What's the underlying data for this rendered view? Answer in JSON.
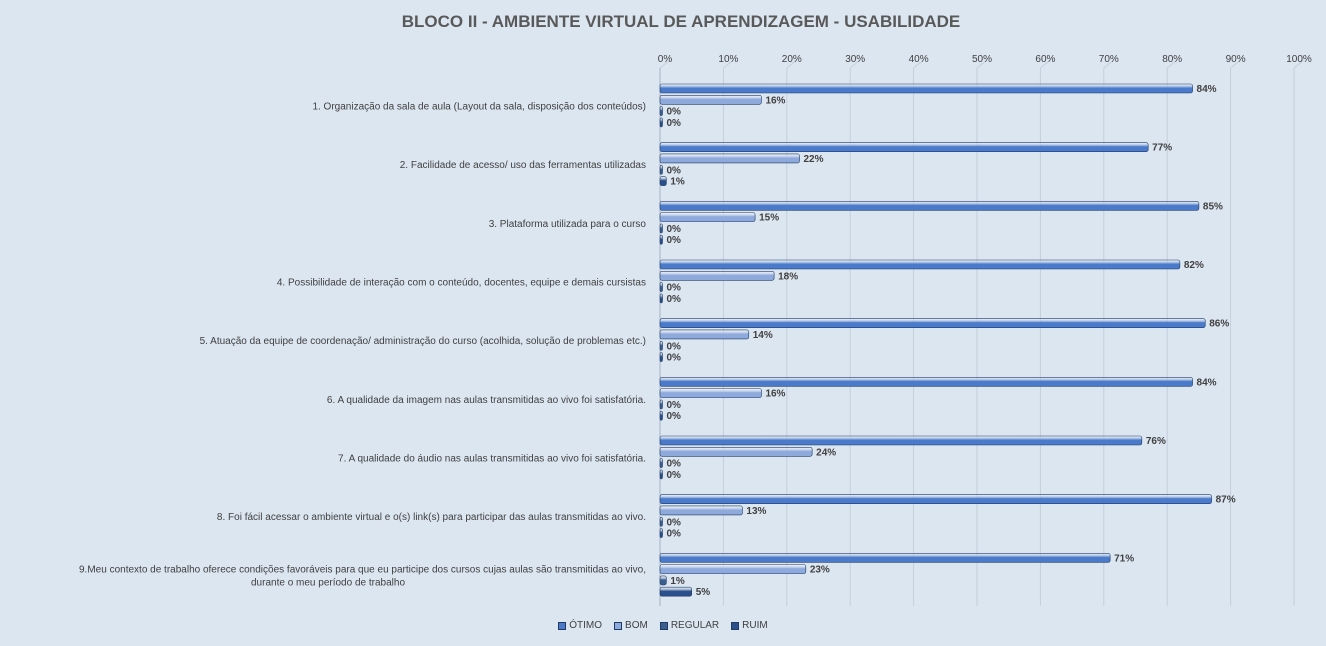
{
  "chart_data": {
    "type": "bar",
    "orientation": "horizontal",
    "title": "BLOCO II - AMBIENTE VIRTUAL DE APRENDIZAGEM - USABILIDADE",
    "xlim": [
      0,
      100
    ],
    "x_ticks": [
      "0%",
      "10%",
      "20%",
      "30%",
      "40%",
      "50%",
      "60%",
      "70%",
      "80%",
      "90%",
      "100%"
    ],
    "x_axis_position": "top",
    "grid": true,
    "legend_position": "bottom",
    "value_suffix": "%",
    "categories": [
      [
        "1. Organização da sala de aula (Layout da sala, disposição dos conteúdos)"
      ],
      [
        "2. Facilidade de acesso/ uso das ferramentas utilizadas"
      ],
      [
        "3. Plataforma utilizada para o curso"
      ],
      [
        "4. Possibilidade de interação com o conteúdo, docentes, equipe e demais cursistas"
      ],
      [
        "5. Atuação da equipe de coordenação/ administração do curso (acolhida, solução de problemas etc.)"
      ],
      [
        "6. A qualidade da imagem nas aulas transmitidas ao vivo foi satisfatória."
      ],
      [
        "7. A qualidade do áudio nas aulas transmitidas ao vivo foi satisfatória."
      ],
      [
        "8. Foi fácil acessar o ambiente virtual e o(s) link(s) para participar das aulas transmitidas ao vivo."
      ],
      [
        "9.Meu contexto de trabalho oferece condições favoráveis para que eu participe dos cursos cujas aulas são transmitidas ao vivo,",
        "durante o meu período de trabalho"
      ]
    ],
    "series": [
      {
        "name": "ÓTIMO",
        "color": "#4a7ac9",
        "values": [
          84,
          77,
          85,
          82,
          86,
          84,
          76,
          87,
          71
        ]
      },
      {
        "name": "BOM",
        "color": "#8ea9db",
        "values": [
          16,
          22,
          15,
          18,
          14,
          16,
          24,
          13,
          23
        ]
      },
      {
        "name": "REGULAR",
        "color": "#3b5e8f",
        "values": [
          0,
          0,
          0,
          0,
          0,
          0,
          0,
          0,
          1
        ]
      },
      {
        "name": "RUIM",
        "color": "#2a4f8a",
        "values": [
          0,
          1,
          0,
          0,
          0,
          0,
          0,
          0,
          5
        ]
      }
    ]
  }
}
